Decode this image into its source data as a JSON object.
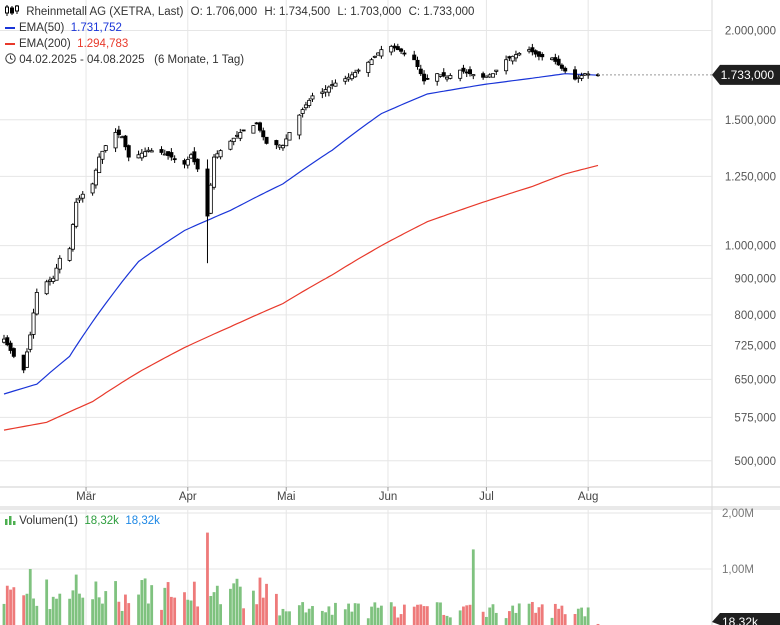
{
  "header": {
    "icon": "candlestick-icon",
    "title": "Rheinmetall AG (XETRA, Last)",
    "open": "O: 1.706,000",
    "high": "H: 1.734,500",
    "low": "L: 1.703,000",
    "close": "C: 1.733,000",
    "ema50_label": "EMA(50)",
    "ema50_value": "1.731,752",
    "ema200_label": "EMA(200)",
    "ema200_value": "1.294,783",
    "range_icon": "clock-icon",
    "range": "04.02.2025 - 04.08.2025",
    "range_detail": "(6 Monate, 1 Tag)"
  },
  "colors": {
    "up": "#000000",
    "down": "#000000",
    "ema50": "#1a35d8",
    "ema200": "#e8392b",
    "vol_up": "#7fc27f",
    "vol_down": "#ee7a7a",
    "grid": "#e6e6e6",
    "price_tag_bg": "#1f1f1f"
  },
  "volume_panel": {
    "icon": "bar-chart-icon",
    "label": "Volumen(1)",
    "value1": "18,32k",
    "value2": "18,32k",
    "current_tag": "18,32k"
  },
  "chart_data": {
    "type": "candlestick",
    "title": "Rheinmetall AG (XETRA, Last)",
    "scale": "log",
    "ylim": [
      470,
      2150
    ],
    "y_ticks": [
      {
        "value": 2000,
        "label": "2.000,000"
      },
      {
        "value": 1500,
        "label": "1.500,000"
      },
      {
        "value": 1250,
        "label": "1.250,000"
      },
      {
        "value": 1000,
        "label": "1.000,000"
      },
      {
        "value": 900,
        "label": "900,000"
      },
      {
        "value": 800,
        "label": "800,000"
      },
      {
        "value": 725,
        "label": "725,000"
      },
      {
        "value": 650,
        "label": "650,000"
      },
      {
        "value": 575,
        "label": "575,000"
      },
      {
        "value": 500,
        "label": "500,000"
      }
    ],
    "x_ticks": [
      {
        "date": "2025-03-01",
        "label": "Mär"
      },
      {
        "date": "2025-04-01",
        "label": "Apr"
      },
      {
        "date": "2025-05-01",
        "label": "Mai"
      },
      {
        "date": "2025-06-01",
        "label": "Jun"
      },
      {
        "date": "2025-07-01",
        "label": "Jul"
      },
      {
        "date": "2025-08-01",
        "label": "Aug"
      }
    ],
    "start_date": "2025-02-04",
    "end_date": "2025-08-04",
    "last_price": {
      "value": 1733,
      "label": "1.733,000"
    },
    "close_anchors": [
      [
        "2025-02-04",
        740
      ],
      [
        "2025-02-07",
        700
      ],
      [
        "2025-02-10",
        670
      ],
      [
        "2025-02-12",
        750
      ],
      [
        "2025-02-14",
        860
      ],
      [
        "2025-02-17",
        890
      ],
      [
        "2025-02-19",
        900
      ],
      [
        "2025-02-21",
        960
      ],
      [
        "2025-02-24",
        990
      ],
      [
        "2025-02-26",
        1150
      ],
      [
        "2025-02-28",
        1180
      ],
      [
        "2025-03-03",
        1220
      ],
      [
        "2025-03-05",
        1330
      ],
      [
        "2025-03-07",
        1380
      ],
      [
        "2025-03-10",
        1440
      ],
      [
        "2025-03-12",
        1420
      ],
      [
        "2025-03-14",
        1330
      ],
      [
        "2025-03-17",
        1340
      ],
      [
        "2025-03-20",
        1360
      ],
      [
        "2025-03-24",
        1350
      ],
      [
        "2025-03-27",
        1330
      ],
      [
        "2025-03-31",
        1300
      ],
      [
        "2025-04-02",
        1340
      ],
      [
        "2025-04-04",
        1280
      ],
      [
        "2025-04-07",
        1100
      ],
      [
        "2025-04-09",
        1330
      ],
      [
        "2025-04-14",
        1400
      ],
      [
        "2025-04-17",
        1440
      ],
      [
        "2025-04-22",
        1480
      ],
      [
        "2025-04-25",
        1390
      ],
      [
        "2025-04-30",
        1380
      ],
      [
        "2025-05-02",
        1440
      ],
      [
        "2025-05-06",
        1550
      ],
      [
        "2025-05-09",
        1620
      ],
      [
        "2025-05-12",
        1640
      ],
      [
        "2025-05-15",
        1680
      ],
      [
        "2025-05-20",
        1720
      ],
      [
        "2025-05-23",
        1760
      ],
      [
        "2025-05-27",
        1820
      ],
      [
        "2025-05-30",
        1880
      ],
      [
        "2025-06-02",
        1900
      ],
      [
        "2025-06-05",
        1870
      ],
      [
        "2025-06-09",
        1820
      ],
      [
        "2025-06-12",
        1700
      ],
      [
        "2025-06-16",
        1740
      ],
      [
        "2025-06-19",
        1720
      ],
      [
        "2025-06-23",
        1760
      ],
      [
        "2025-06-26",
        1740
      ],
      [
        "2025-06-30",
        1720
      ],
      [
        "2025-07-03",
        1740
      ],
      [
        "2025-07-07",
        1820
      ],
      [
        "2025-07-10",
        1850
      ],
      [
        "2025-07-14",
        1880
      ],
      [
        "2025-07-17",
        1840
      ],
      [
        "2025-07-21",
        1830
      ],
      [
        "2025-07-24",
        1770
      ],
      [
        "2025-07-28",
        1710
      ],
      [
        "2025-07-31",
        1740
      ],
      [
        "2025-08-04",
        1733
      ]
    ],
    "ema50_anchors": [
      [
        "2025-02-04",
        620
      ],
      [
        "2025-02-14",
        640
      ],
      [
        "2025-02-24",
        700
      ],
      [
        "2025-03-07",
        830
      ],
      [
        "2025-03-17",
        950
      ],
      [
        "2025-03-31",
        1050
      ],
      [
        "2025-04-14",
        1120
      ],
      [
        "2025-04-30",
        1220
      ],
      [
        "2025-05-15",
        1360
      ],
      [
        "2025-05-30",
        1530
      ],
      [
        "2025-06-13",
        1630
      ],
      [
        "2025-06-30",
        1680
      ],
      [
        "2025-07-15",
        1715
      ],
      [
        "2025-07-25",
        1740
      ],
      [
        "2025-08-04",
        1731.752
      ]
    ],
    "ema200_anchors": [
      [
        "2025-02-04",
        552
      ],
      [
        "2025-02-17",
        566
      ],
      [
        "2025-03-03",
        605
      ],
      [
        "2025-03-17",
        665
      ],
      [
        "2025-03-31",
        720
      ],
      [
        "2025-04-14",
        770
      ],
      [
        "2025-04-30",
        830
      ],
      [
        "2025-05-15",
        910
      ],
      [
        "2025-05-30",
        1000
      ],
      [
        "2025-06-13",
        1080
      ],
      [
        "2025-06-30",
        1150
      ],
      [
        "2025-07-15",
        1210
      ],
      [
        "2025-07-25",
        1260
      ],
      [
        "2025-08-04",
        1294.783
      ]
    ],
    "volume": {
      "unit": "shares",
      "ylim": [
        0,
        2000000
      ],
      "y_ticks": [
        {
          "value": 2000000,
          "label": "2,00M"
        },
        {
          "value": 1000000,
          "label": "1,00M"
        }
      ],
      "notable": [
        [
          "2025-02-12",
          1000000
        ],
        [
          "2025-02-26",
          900000
        ],
        [
          "2025-04-07",
          1650000
        ],
        [
          "2025-06-27",
          1350000
        ],
        [
          "2025-08-04",
          18320
        ]
      ]
    }
  }
}
